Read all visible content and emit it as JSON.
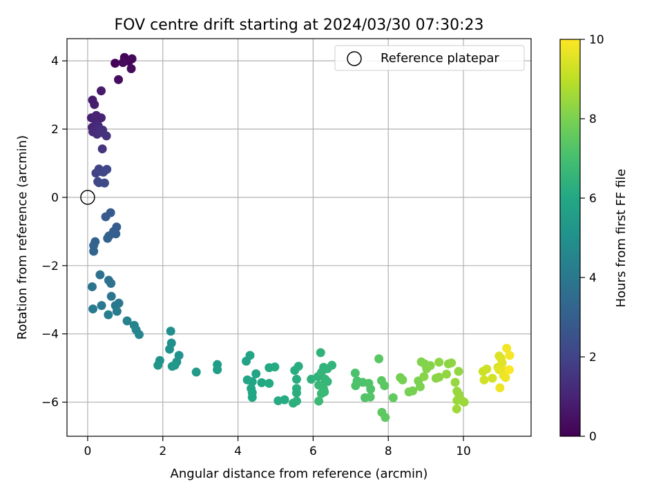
{
  "chart_data": {
    "type": "scatter",
    "title": "FOV centre drift starting at 2024/03/30 07:30:23",
    "xlabel": "Angular distance from reference (arcmin)",
    "ylabel": "Rotation from reference (arcmin)",
    "xlim": [
      -0.55,
      11.8
    ],
    "ylim": [
      -7.0,
      4.65
    ],
    "xticks": [
      0,
      2,
      4,
      6,
      8,
      10
    ],
    "xtick_labels": [
      "0",
      "2",
      "4",
      "6",
      "8",
      "10"
    ],
    "yticks": [
      -6,
      -4,
      -2,
      0,
      2,
      4
    ],
    "ytick_labels": [
      "−6",
      "−4",
      "−2",
      "0",
      "2",
      "4"
    ],
    "grid": true,
    "legend": {
      "placement": "top-right",
      "entries": [
        "Reference platepar"
      ]
    },
    "reference_point": {
      "x": 0,
      "y": 0,
      "label": "Reference platepar"
    },
    "colorbar": {
      "label": "Hours from first FF file",
      "colormap": "viridis",
      "range": [
        0,
        10
      ],
      "ticks": [
        0,
        2,
        4,
        6,
        8,
        10
      ],
      "tick_labels": [
        "0",
        "2",
        "4",
        "6",
        "8",
        "10"
      ]
    },
    "points": [
      {
        "x": 0.73,
        "y": 3.93,
        "h": 0.05
      },
      {
        "x": 0.98,
        "y": 4.1,
        "h": 0.1
      },
      {
        "x": 1.1,
        "y": 3.99,
        "h": 0.15
      },
      {
        "x": 1.18,
        "y": 4.06,
        "h": 0.2
      },
      {
        "x": 0.94,
        "y": 3.95,
        "h": 0.25
      },
      {
        "x": 1.16,
        "y": 3.77,
        "h": 0.3
      },
      {
        "x": 0.82,
        "y": 3.45,
        "h": 0.35
      },
      {
        "x": 0.36,
        "y": 3.12,
        "h": 0.7
      },
      {
        "x": 0.13,
        "y": 2.85,
        "h": 0.75
      },
      {
        "x": 0.18,
        "y": 2.72,
        "h": 0.8
      },
      {
        "x": 0.1,
        "y": 2.33,
        "h": 0.85
      },
      {
        "x": 0.23,
        "y": 2.4,
        "h": 0.9
      },
      {
        "x": 0.36,
        "y": 2.33,
        "h": 0.95
      },
      {
        "x": 0.18,
        "y": 2.3,
        "h": 1.0
      },
      {
        "x": 0.12,
        "y": 2.05,
        "h": 1.05
      },
      {
        "x": 0.21,
        "y": 2.12,
        "h": 1.1
      },
      {
        "x": 0.28,
        "y": 2.1,
        "h": 1.15
      },
      {
        "x": 0.14,
        "y": 1.92,
        "h": 1.2
      },
      {
        "x": 0.25,
        "y": 1.85,
        "h": 1.25
      },
      {
        "x": 0.31,
        "y": 1.99,
        "h": 1.3
      },
      {
        "x": 0.4,
        "y": 1.97,
        "h": 1.35
      },
      {
        "x": 0.36,
        "y": 1.9,
        "h": 1.4
      },
      {
        "x": 0.5,
        "y": 1.8,
        "h": 1.45
      },
      {
        "x": 0.39,
        "y": 1.42,
        "h": 1.5
      },
      {
        "x": 0.3,
        "y": 0.83,
        "h": 1.9
      },
      {
        "x": 0.22,
        "y": 0.71,
        "h": 1.95
      },
      {
        "x": 0.35,
        "y": 0.76,
        "h": 2.0
      },
      {
        "x": 0.42,
        "y": 0.74,
        "h": 2.05
      },
      {
        "x": 0.51,
        "y": 0.82,
        "h": 2.1
      },
      {
        "x": 0.27,
        "y": 0.46,
        "h": 2.15
      },
      {
        "x": 0.3,
        "y": 0.43,
        "h": 2.2
      },
      {
        "x": 0.45,
        "y": 0.42,
        "h": 2.25
      },
      {
        "x": 0.61,
        "y": -0.45,
        "h": 2.8
      },
      {
        "x": 0.48,
        "y": -0.57,
        "h": 2.85
      },
      {
        "x": 0.77,
        "y": -0.87,
        "h": 2.9
      },
      {
        "x": 0.69,
        "y": -1.0,
        "h": 2.95
      },
      {
        "x": 0.75,
        "y": -1.07,
        "h": 3.0
      },
      {
        "x": 0.57,
        "y": -1.13,
        "h": 3.05
      },
      {
        "x": 0.53,
        "y": -1.2,
        "h": 3.1
      },
      {
        "x": 0.2,
        "y": -1.3,
        "h": 3.15
      },
      {
        "x": 0.16,
        "y": -1.41,
        "h": 3.2
      },
      {
        "x": 0.16,
        "y": -1.58,
        "h": 3.25
      },
      {
        "x": 0.33,
        "y": -2.27,
        "h": 3.7
      },
      {
        "x": 0.56,
        "y": -2.43,
        "h": 3.75
      },
      {
        "x": 0.62,
        "y": -2.52,
        "h": 3.8
      },
      {
        "x": 0.12,
        "y": -2.62,
        "h": 3.85
      },
      {
        "x": 0.63,
        "y": -2.9,
        "h": 3.9
      },
      {
        "x": 0.83,
        "y": -3.1,
        "h": 3.95
      },
      {
        "x": 0.74,
        "y": -3.17,
        "h": 4.0
      },
      {
        "x": 0.37,
        "y": -3.17,
        "h": 4.05
      },
      {
        "x": 0.14,
        "y": -3.27,
        "h": 4.1
      },
      {
        "x": 0.78,
        "y": -3.34,
        "h": 4.15
      },
      {
        "x": 0.55,
        "y": -3.44,
        "h": 4.2
      },
      {
        "x": 1.05,
        "y": -3.62,
        "h": 4.4
      },
      {
        "x": 1.24,
        "y": -3.75,
        "h": 4.45
      },
      {
        "x": 1.29,
        "y": -3.88,
        "h": 4.5
      },
      {
        "x": 1.37,
        "y": -4.02,
        "h": 4.55
      },
      {
        "x": 2.21,
        "y": -3.92,
        "h": 4.9
      },
      {
        "x": 2.23,
        "y": -4.27,
        "h": 4.95
      },
      {
        "x": 2.18,
        "y": -4.45,
        "h": 5.0
      },
      {
        "x": 2.43,
        "y": -4.63,
        "h": 5.05
      },
      {
        "x": 1.92,
        "y": -4.78,
        "h": 5.1
      },
      {
        "x": 2.37,
        "y": -4.82,
        "h": 5.15
      },
      {
        "x": 1.87,
        "y": -4.92,
        "h": 5.2
      },
      {
        "x": 2.25,
        "y": -4.95,
        "h": 5.25
      },
      {
        "x": 2.32,
        "y": -4.92,
        "h": 5.3
      },
      {
        "x": 2.89,
        "y": -5.12,
        "h": 5.4
      },
      {
        "x": 3.45,
        "y": -4.9,
        "h": 5.5
      },
      {
        "x": 3.45,
        "y": -5.05,
        "h": 5.55
      },
      {
        "x": 4.22,
        "y": -4.8,
        "h": 5.8
      },
      {
        "x": 4.32,
        "y": -4.63,
        "h": 5.82
      },
      {
        "x": 4.48,
        "y": -5.17,
        "h": 5.85
      },
      {
        "x": 4.25,
        "y": -5.35,
        "h": 5.87
      },
      {
        "x": 4.38,
        "y": -5.4,
        "h": 5.9
      },
      {
        "x": 4.35,
        "y": -5.6,
        "h": 5.92
      },
      {
        "x": 4.38,
        "y": -5.72,
        "h": 5.95
      },
      {
        "x": 4.38,
        "y": -5.86,
        "h": 5.97
      },
      {
        "x": 4.63,
        "y": -5.43,
        "h": 6.0
      },
      {
        "x": 4.83,
        "y": -4.99,
        "h": 6.05
      },
      {
        "x": 4.98,
        "y": -4.97,
        "h": 6.08
      },
      {
        "x": 4.83,
        "y": -5.45,
        "h": 6.1
      },
      {
        "x": 5.07,
        "y": -5.96,
        "h": 6.12
      },
      {
        "x": 5.24,
        "y": -5.93,
        "h": 6.15
      },
      {
        "x": 5.51,
        "y": -5.07,
        "h": 6.18
      },
      {
        "x": 5.61,
        "y": -4.95,
        "h": 6.2
      },
      {
        "x": 5.56,
        "y": -5.33,
        "h": 6.22
      },
      {
        "x": 5.56,
        "y": -5.6,
        "h": 6.25
      },
      {
        "x": 5.56,
        "y": -5.73,
        "h": 6.27
      },
      {
        "x": 5.47,
        "y": -6.03,
        "h": 6.3
      },
      {
        "x": 5.56,
        "y": -5.97,
        "h": 6.32
      },
      {
        "x": 5.95,
        "y": -5.33,
        "h": 6.4
      },
      {
        "x": 6.13,
        "y": -5.25,
        "h": 6.42
      },
      {
        "x": 6.2,
        "y": -4.55,
        "h": 6.45
      },
      {
        "x": 6.28,
        "y": -4.98,
        "h": 6.47
      },
      {
        "x": 6.38,
        "y": -5.02,
        "h": 6.5
      },
      {
        "x": 6.5,
        "y": -4.92,
        "h": 6.52
      },
      {
        "x": 6.22,
        "y": -5.13,
        "h": 6.55
      },
      {
        "x": 6.32,
        "y": -5.33,
        "h": 6.57
      },
      {
        "x": 6.38,
        "y": -5.4,
        "h": 6.6
      },
      {
        "x": 6.15,
        "y": -5.5,
        "h": 6.62
      },
      {
        "x": 6.25,
        "y": -5.55,
        "h": 6.65
      },
      {
        "x": 6.28,
        "y": -5.62,
        "h": 6.67
      },
      {
        "x": 6.22,
        "y": -5.75,
        "h": 6.7
      },
      {
        "x": 6.3,
        "y": -5.7,
        "h": 6.72
      },
      {
        "x": 6.15,
        "y": -5.97,
        "h": 6.75
      },
      {
        "x": 7.12,
        "y": -5.15,
        "h": 7.1
      },
      {
        "x": 7.17,
        "y": -5.38,
        "h": 7.12
      },
      {
        "x": 7.32,
        "y": -5.42,
        "h": 7.15
      },
      {
        "x": 7.13,
        "y": -5.52,
        "h": 7.17
      },
      {
        "x": 7.48,
        "y": -5.45,
        "h": 7.2
      },
      {
        "x": 7.53,
        "y": -5.62,
        "h": 7.22
      },
      {
        "x": 7.38,
        "y": -5.87,
        "h": 7.25
      },
      {
        "x": 7.52,
        "y": -5.85,
        "h": 7.27
      },
      {
        "x": 7.75,
        "y": -4.73,
        "h": 7.4
      },
      {
        "x": 7.82,
        "y": -5.37,
        "h": 7.42
      },
      {
        "x": 7.9,
        "y": -5.52,
        "h": 7.45
      },
      {
        "x": 7.83,
        "y": -6.3,
        "h": 7.47
      },
      {
        "x": 7.92,
        "y": -6.45,
        "h": 7.5
      },
      {
        "x": 8.13,
        "y": -5.87,
        "h": 7.55
      },
      {
        "x": 8.32,
        "y": -5.28,
        "h": 7.9
      },
      {
        "x": 8.38,
        "y": -5.35,
        "h": 7.92
      },
      {
        "x": 8.55,
        "y": -5.7,
        "h": 7.95
      },
      {
        "x": 8.65,
        "y": -5.67,
        "h": 7.97
      },
      {
        "x": 8.8,
        "y": -5.38,
        "h": 8.0
      },
      {
        "x": 8.85,
        "y": -5.55,
        "h": 8.02
      },
      {
        "x": 8.88,
        "y": -4.82,
        "h": 8.1
      },
      {
        "x": 8.97,
        "y": -4.88,
        "h": 8.12
      },
      {
        "x": 9.02,
        "y": -5.02,
        "h": 8.15
      },
      {
        "x": 9.12,
        "y": -4.93,
        "h": 8.17
      },
      {
        "x": 8.95,
        "y": -5.25,
        "h": 8.2
      },
      {
        "x": 9.27,
        "y": -5.3,
        "h": 8.22
      },
      {
        "x": 9.35,
        "y": -5.27,
        "h": 8.25
      },
      {
        "x": 9.35,
        "y": -4.83,
        "h": 8.27
      },
      {
        "x": 9.6,
        "y": -4.88,
        "h": 8.3
      },
      {
        "x": 9.68,
        "y": -4.85,
        "h": 8.32
      },
      {
        "x": 9.55,
        "y": -5.18,
        "h": 8.35
      },
      {
        "x": 9.87,
        "y": -5.1,
        "h": 8.37
      },
      {
        "x": 9.78,
        "y": -5.42,
        "h": 8.4
      },
      {
        "x": 9.83,
        "y": -5.68,
        "h": 8.42
      },
      {
        "x": 9.88,
        "y": -5.78,
        "h": 8.45
      },
      {
        "x": 9.83,
        "y": -5.95,
        "h": 8.47
      },
      {
        "x": 9.95,
        "y": -5.95,
        "h": 8.5
      },
      {
        "x": 10.02,
        "y": -6.0,
        "h": 8.52
      },
      {
        "x": 9.82,
        "y": -6.2,
        "h": 8.55
      },
      {
        "x": 10.52,
        "y": -5.1,
        "h": 9.2
      },
      {
        "x": 10.62,
        "y": -5.03,
        "h": 9.25
      },
      {
        "x": 10.55,
        "y": -5.35,
        "h": 9.3
      },
      {
        "x": 10.77,
        "y": -5.3,
        "h": 9.35
      },
      {
        "x": 10.92,
        "y": -4.98,
        "h": 9.4
      },
      {
        "x": 10.95,
        "y": -4.65,
        "h": 9.45
      },
      {
        "x": 11.0,
        "y": -4.72,
        "h": 9.5
      },
      {
        "x": 11.03,
        "y": -4.85,
        "h": 9.55
      },
      {
        "x": 10.95,
        "y": -5.05,
        "h": 9.6
      },
      {
        "x": 11.07,
        "y": -5.08,
        "h": 9.65
      },
      {
        "x": 11.07,
        "y": -5.22,
        "h": 9.7
      },
      {
        "x": 11.12,
        "y": -5.28,
        "h": 9.75
      },
      {
        "x": 10.97,
        "y": -5.58,
        "h": 9.8
      },
      {
        "x": 11.15,
        "y": -4.42,
        "h": 9.85
      },
      {
        "x": 11.23,
        "y": -4.63,
        "h": 9.9
      },
      {
        "x": 11.22,
        "y": -5.05,
        "h": 9.95
      }
    ]
  }
}
